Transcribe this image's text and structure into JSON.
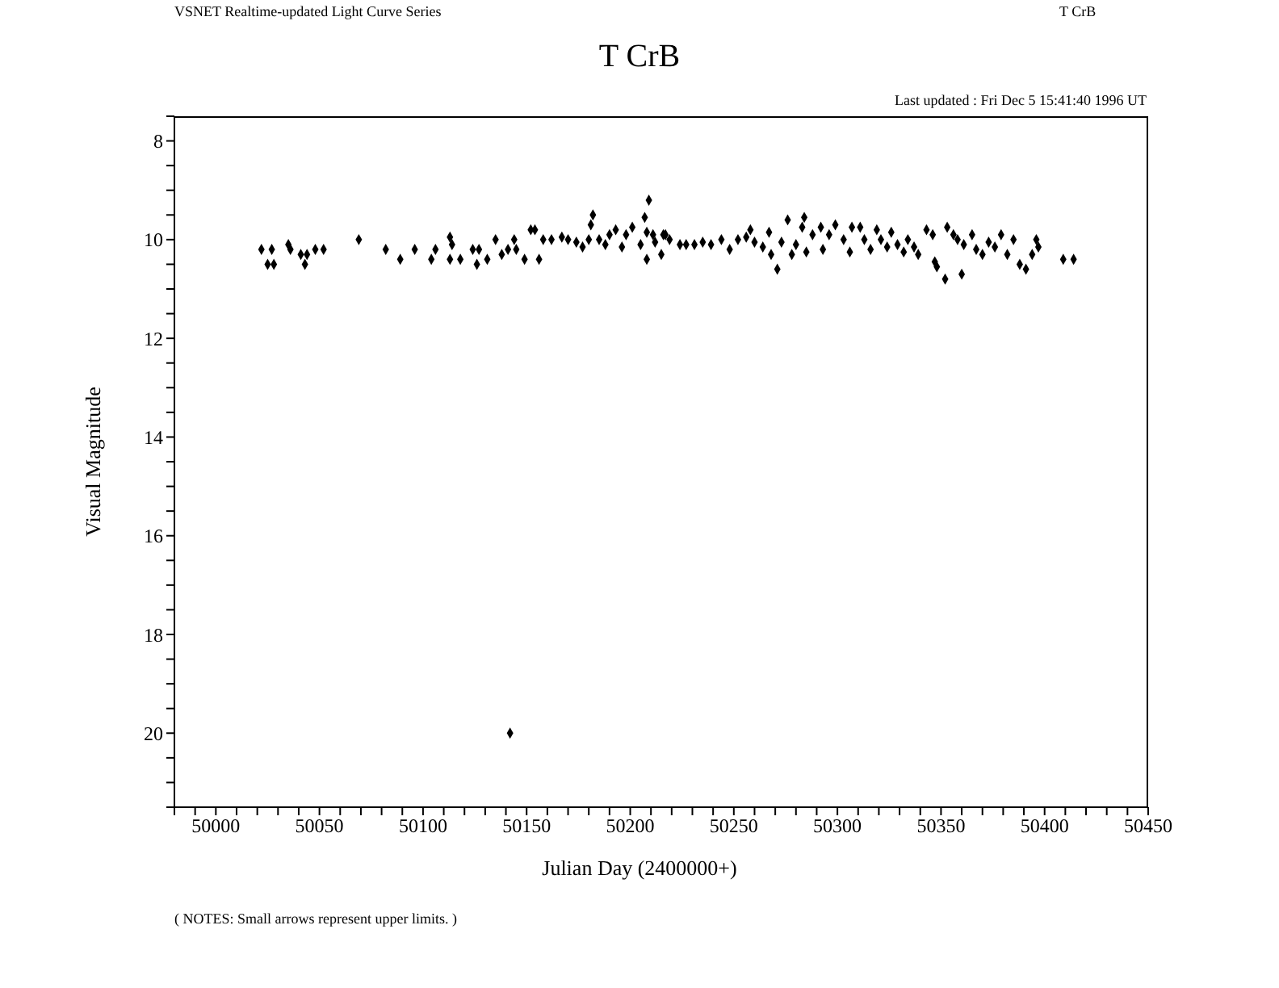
{
  "chart_data": {
    "type": "scatter",
    "title": "T CrB",
    "xlabel": "Julian Day (2400000+)",
    "ylabel": "Visual Magnitude",
    "annotations": [
      "VSNET Realtime-updated Light Curve Series",
      "T CrB",
      "Last updated :  Fri Dec 5 15:41:40 1996 UT",
      "( NOTES: Small arrows represent upper limits. )"
    ],
    "marker": "diamond",
    "xlim": [
      49980,
      50450
    ],
    "ylim": [
      21.5,
      7.5
    ],
    "xticks": [
      {
        "value": 49980,
        "label": null
      },
      {
        "value": 49990,
        "label": null
      },
      50000,
      {
        "value": 50010,
        "label": null
      },
      {
        "value": 50020,
        "label": null
      },
      {
        "value": 50030,
        "label": null
      },
      {
        "value": 50040,
        "label": null
      },
      50050,
      {
        "value": 50060,
        "label": null
      },
      {
        "value": 50070,
        "label": null
      },
      {
        "value": 50080,
        "label": null
      },
      {
        "value": 50090,
        "label": null
      },
      50100,
      {
        "value": 50110,
        "label": null
      },
      {
        "value": 50120,
        "label": null
      },
      {
        "value": 50130,
        "label": null
      },
      {
        "value": 50140,
        "label": null
      },
      50150,
      {
        "value": 50160,
        "label": null
      },
      {
        "value": 50170,
        "label": null
      },
      {
        "value": 50180,
        "label": null
      },
      {
        "value": 50190,
        "label": null
      },
      50200,
      {
        "value": 50210,
        "label": null
      },
      {
        "value": 50220,
        "label": null
      },
      {
        "value": 50230,
        "label": null
      },
      {
        "value": 50240,
        "label": null
      },
      50250,
      {
        "value": 50260,
        "label": null
      },
      {
        "value": 50270,
        "label": null
      },
      {
        "value": 50280,
        "label": null
      },
      {
        "value": 50290,
        "label": null
      },
      50300,
      {
        "value": 50310,
        "label": null
      },
      {
        "value": 50320,
        "label": null
      },
      {
        "value": 50330,
        "label": null
      },
      {
        "value": 50340,
        "label": null
      },
      50350,
      {
        "value": 50360,
        "label": null
      },
      {
        "value": 50370,
        "label": null
      },
      {
        "value": 50380,
        "label": null
      },
      {
        "value": 50390,
        "label": null
      },
      50400,
      {
        "value": 50410,
        "label": null
      },
      {
        "value": 50420,
        "label": null
      },
      {
        "value": 50430,
        "label": null
      },
      {
        "value": 50440,
        "label": null
      },
      50450
    ],
    "yticks": [
      {
        "value": 7.5,
        "label": null
      },
      8,
      {
        "value": 8.5,
        "label": null
      },
      {
        "value": 9,
        "label": null
      },
      {
        "value": 9.5,
        "label": null
      },
      10,
      {
        "value": 10.5,
        "label": null
      },
      {
        "value": 11,
        "label": null
      },
      {
        "value": 11.5,
        "label": null
      },
      12,
      {
        "value": 12.5,
        "label": null
      },
      {
        "value": 13,
        "label": null
      },
      {
        "value": 13.5,
        "label": null
      },
      14,
      {
        "value": 14.5,
        "label": null
      },
      {
        "value": 15,
        "label": null
      },
      {
        "value": 15.5,
        "label": null
      },
      16,
      {
        "value": 16.5,
        "label": null
      },
      {
        "value": 17,
        "label": null
      },
      {
        "value": 17.5,
        "label": null
      },
      18,
      {
        "value": 18.5,
        "label": null
      },
      {
        "value": 19,
        "label": null
      },
      {
        "value": 19.5,
        "label": null
      },
      20,
      {
        "value": 20.5,
        "label": null
      },
      {
        "value": 21,
        "label": null
      },
      {
        "value": 21.5,
        "label": null
      }
    ],
    "series": [
      {
        "color": "#000000",
        "x": [
          50022,
          50027,
          50025,
          50028,
          50035,
          50036,
          50041,
          50044,
          50043,
          50048,
          50052,
          50069,
          50082,
          50089,
          50096,
          50104,
          50106,
          50113,
          50114,
          50113,
          50118,
          50124,
          50127,
          50126,
          50131,
          50135,
          50138,
          50141,
          50144,
          50145,
          50149,
          50152,
          50154,
          50156,
          50158,
          50162,
          50167,
          50170,
          50174,
          50177,
          50180,
          50182,
          50181,
          50185,
          50188,
          50190,
          50193,
          50196,
          50198,
          50201,
          50205,
          50207,
          50209,
          50208,
          50211,
          50215,
          50217,
          50208,
          50212,
          50216,
          50219,
          50224,
          50227,
          50231,
          50235,
          50239,
          50244,
          50248,
          50252,
          50256,
          50258,
          50260,
          50264,
          50267,
          50268,
          50271,
          50273,
          50276,
          50278,
          50280,
          50283,
          50284,
          50285,
          50288,
          50292,
          50293,
          50296,
          50299,
          50303,
          50306,
          50307,
          50311,
          50313,
          50316,
          50319,
          50321,
          50324,
          50326,
          50329,
          50332,
          50334,
          50337,
          50339,
          50343,
          50346,
          50347,
          50348,
          50352,
          50353,
          50356,
          50358,
          50360,
          50361,
          50365,
          50367,
          50370,
          50373,
          50376,
          50379,
          50382,
          50385,
          50388,
          50391,
          50394,
          50396,
          50397,
          50409,
          50414,
          50142
        ],
        "values": [
          10.2,
          10.2,
          10.5,
          10.5,
          10.1,
          10.2,
          10.3,
          10.3,
          10.5,
          10.2,
          10.2,
          10.0,
          10.2,
          10.4,
          10.2,
          10.4,
          10.2,
          9.95,
          10.1,
          10.4,
          10.4,
          10.2,
          10.2,
          10.5,
          10.4,
          10.0,
          10.3,
          10.2,
          10.0,
          10.2,
          10.4,
          9.8,
          9.8,
          10.4,
          10.0,
          10.0,
          9.95,
          10.0,
          10.05,
          10.15,
          10.0,
          9.5,
          9.7,
          10.0,
          10.1,
          9.9,
          9.8,
          10.15,
          9.9,
          9.75,
          10.1,
          9.55,
          9.2,
          10.4,
          9.9,
          10.3,
          9.9,
          9.85,
          10.05,
          9.9,
          10.0,
          10.1,
          10.1,
          10.1,
          10.05,
          10.1,
          10.0,
          10.2,
          10.0,
          9.95,
          9.8,
          10.05,
          10.15,
          9.85,
          10.3,
          10.6,
          10.05,
          9.6,
          10.3,
          10.1,
          9.75,
          9.55,
          10.25,
          9.9,
          9.75,
          10.2,
          9.9,
          9.7,
          10.0,
          10.25,
          9.75,
          9.75,
          10.0,
          10.2,
          9.8,
          10.0,
          10.15,
          9.85,
          10.1,
          10.25,
          10.0,
          10.15,
          10.3,
          9.8,
          9.9,
          10.45,
          10.55,
          10.8,
          9.75,
          9.9,
          10.0,
          10.7,
          10.1,
          9.9,
          10.2,
          10.3,
          10.05,
          10.15,
          9.9,
          10.3,
          10.0,
          10.5,
          10.6,
          10.3,
          10.0,
          10.15,
          10.4,
          10.4,
          20.0
        ]
      }
    ]
  }
}
